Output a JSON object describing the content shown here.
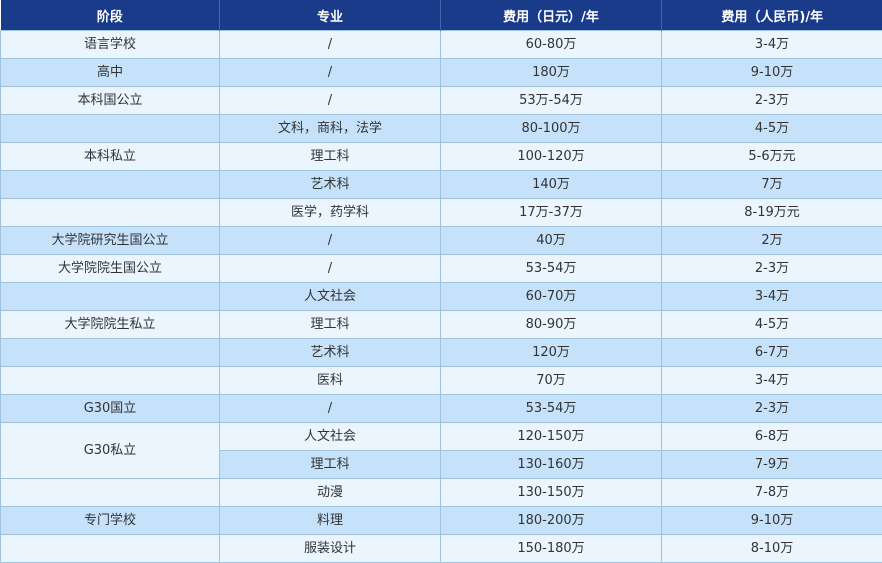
{
  "headers": [
    "阶段",
    "专业",
    "费用（日元）/年",
    "费用（人民币)/年"
  ],
  "rows": [
    {
      "stage": "语言学校",
      "major": "/",
      "jpy": "60-80万",
      "cny": "3-4万"
    },
    {
      "stage": "高中",
      "major": "/",
      "jpy": "180万",
      "cny": "9-10万"
    },
    {
      "stage": "本科国公立",
      "major": "/",
      "jpy": "53万-54万",
      "cny": "2-3万"
    },
    {
      "stage": "",
      "major": "文科，商科，法学",
      "jpy": "80-100万",
      "cny": "4-5万"
    },
    {
      "stage": "本科私立",
      "major": "理工科",
      "jpy": "100-120万",
      "cny": "5-6万元"
    },
    {
      "stage": "",
      "major": "艺术科",
      "jpy": "140万",
      "cny": "7万"
    },
    {
      "stage": "",
      "major": "医学，药学科",
      "jpy": "17万-37万",
      "cny": "8-19万元"
    },
    {
      "stage": "大学院研究生国公立",
      "major": "/",
      "jpy": "40万",
      "cny": "2万"
    },
    {
      "stage": "大学院院生国公立",
      "major": "/",
      "jpy": "53-54万",
      "cny": "2-3万"
    },
    {
      "stage": "",
      "major": "人文社会",
      "jpy": "60-70万",
      "cny": "3-4万"
    },
    {
      "stage": "大学院院生私立",
      "major": "理工科",
      "jpy": "80-90万",
      "cny": "4-5万"
    },
    {
      "stage": "",
      "major": "艺术科",
      "jpy": "120万",
      "cny": "6-7万"
    },
    {
      "stage": "",
      "major": "医科",
      "jpy": "70万",
      "cny": "3-4万"
    },
    {
      "stage": "G30国立",
      "major": "/",
      "jpy": "53-54万",
      "cny": "2-3万"
    },
    {
      "stage": "G30私立",
      "major": "人文社会",
      "jpy": "120-150万",
      "cny": "6-8万"
    },
    {
      "stage": "",
      "major": "理工科",
      "jpy": "130-160万",
      "cny": "7-9万"
    },
    {
      "stage": "",
      "major": "动漫",
      "jpy": "130-150万",
      "cny": "7-8万"
    },
    {
      "stage": "专门学校",
      "major": "料理",
      "jpy": "180-200万",
      "cny": "9-10万"
    },
    {
      "stage": "",
      "major": "服装设计",
      "jpy": "150-180万",
      "cny": "8-10万"
    }
  ],
  "colors": {
    "header": "#1a3a8a",
    "row_light": "#eaf5fe",
    "row_dark": "#c6e2fb",
    "border": "#9fc3dc"
  }
}
